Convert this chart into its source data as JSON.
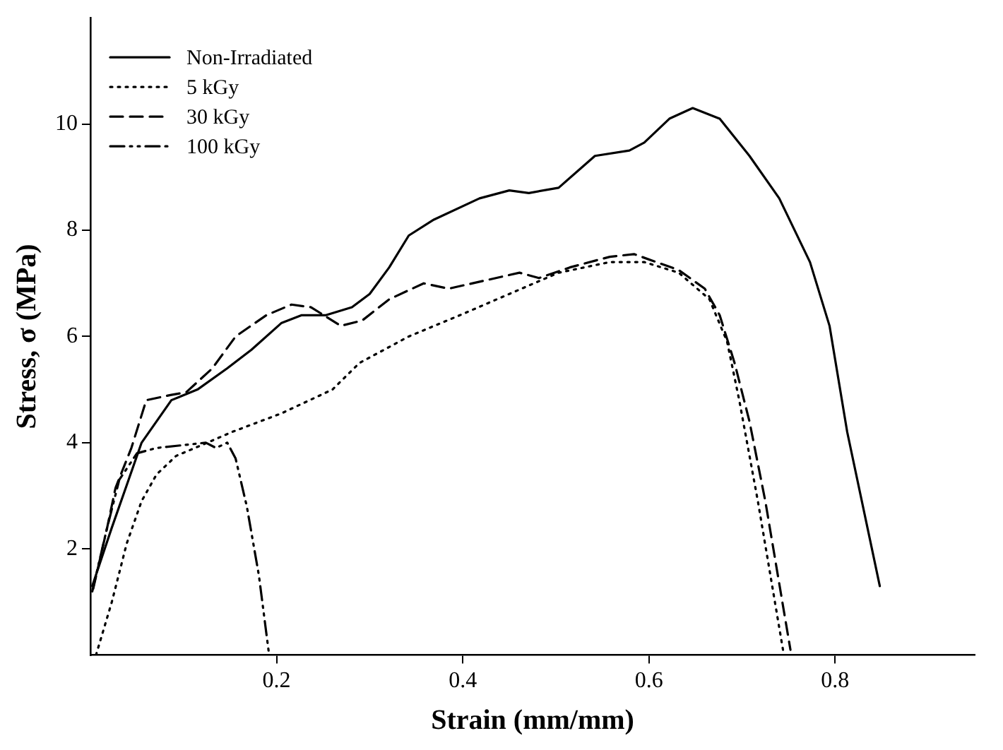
{
  "chart_data": {
    "type": "line",
    "xlabel": "Strain (mm/mm)",
    "ylabel": "Stress, σ (MPa)",
    "xlim": [
      0,
      0.95
    ],
    "xticks": [
      0.2,
      0.4,
      0.6,
      0.8
    ],
    "ylim": [
      0,
      12
    ],
    "yticks": [
      2,
      4,
      6,
      8,
      10
    ],
    "grid": false,
    "legend": "top left",
    "marker": "none",
    "series": [
      {
        "name": "Non-Irradiated",
        "color": "#000000",
        "line_style": "solid",
        "x": [
          0.002,
          0.023,
          0.039,
          0.055,
          0.087,
          0.115,
          0.147,
          0.173,
          0.205,
          0.227,
          0.253,
          0.281,
          0.3,
          0.321,
          0.342,
          0.369,
          0.418,
          0.45,
          0.471,
          0.503,
          0.542,
          0.579,
          0.595,
          0.622,
          0.647,
          0.676,
          0.708,
          0.74,
          0.773,
          0.794,
          0.813,
          0.848
        ],
        "values": [
          1.3,
          2.4,
          3.2,
          4.0,
          4.8,
          5.0,
          5.4,
          5.75,
          6.25,
          6.4,
          6.4,
          6.55,
          6.8,
          7.3,
          7.9,
          8.2,
          8.6,
          8.75,
          8.7,
          8.8,
          9.4,
          9.5,
          9.65,
          10.1,
          10.3,
          10.1,
          9.4,
          8.6,
          7.4,
          6.2,
          4.2,
          1.3
        ]
      },
      {
        "name": "5 kGy",
        "color": "#000000",
        "line_style": "dotted",
        "x": [
          0.006,
          0.023,
          0.039,
          0.055,
          0.071,
          0.092,
          0.119,
          0.152,
          0.205,
          0.26,
          0.289,
          0.342,
          0.397,
          0.45,
          0.503,
          0.558,
          0.595,
          0.632,
          0.665,
          0.684,
          0.697,
          0.717,
          0.744
        ],
        "values": [
          0,
          1.0,
          2.1,
          2.9,
          3.4,
          3.75,
          3.95,
          4.2,
          4.55,
          5.0,
          5.5,
          6.0,
          6.4,
          6.8,
          7.2,
          7.4,
          7.4,
          7.2,
          6.7,
          5.9,
          4.8,
          2.9,
          0.1
        ]
      },
      {
        "name": "30 kGy",
        "color": "#000000",
        "line_style": "dashed",
        "x": [
          0.003,
          0.018,
          0.027,
          0.044,
          0.06,
          0.087,
          0.103,
          0.131,
          0.156,
          0.189,
          0.216,
          0.237,
          0.269,
          0.292,
          0.321,
          0.358,
          0.385,
          0.423,
          0.461,
          0.482,
          0.515,
          0.558,
          0.584,
          0.632,
          0.66,
          0.676,
          0.692,
          0.708,
          0.725,
          0.752
        ],
        "values": [
          1.25,
          2.4,
          3.15,
          3.9,
          4.8,
          4.9,
          4.95,
          5.4,
          6.0,
          6.4,
          6.6,
          6.55,
          6.2,
          6.3,
          6.7,
          7.0,
          6.9,
          7.05,
          7.2,
          7.1,
          7.3,
          7.5,
          7.55,
          7.25,
          6.9,
          6.4,
          5.5,
          4.4,
          2.9,
          0.1
        ]
      },
      {
        "name": "100 kGy",
        "color": "#000000",
        "line_style": "dashdot",
        "x": [
          0.002,
          0.018,
          0.031,
          0.05,
          0.071,
          0.098,
          0.124,
          0.135,
          0.147,
          0.156,
          0.168,
          0.181,
          0.192
        ],
        "values": [
          1.2,
          2.4,
          3.3,
          3.8,
          3.9,
          3.95,
          4.0,
          3.9,
          4.0,
          3.7,
          2.8,
          1.5,
          0
        ]
      }
    ]
  }
}
